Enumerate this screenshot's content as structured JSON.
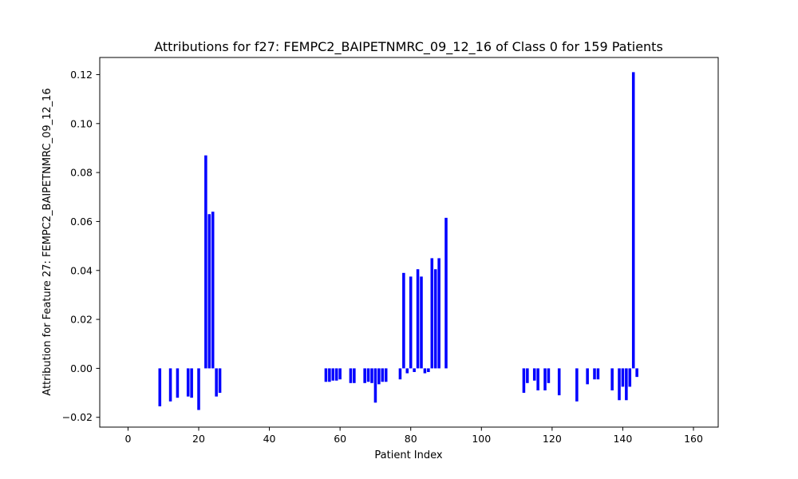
{
  "chart_data": {
    "type": "bar",
    "title": "Attributions for f27: FEMPC2_BAIPETNMRC_09_12_16 of Class 0 for 159 Patients",
    "xlabel": "Patient Index",
    "ylabel": "Attribution for Feature 27: FEMPC2_BAIPETNMRC_09_12_16",
    "xlim": [
      -8,
      167
    ],
    "ylim": [
      -0.024,
      0.127
    ],
    "xticks": [
      0,
      20,
      40,
      60,
      80,
      100,
      120,
      140,
      160
    ],
    "xtick_labels": [
      "0",
      "20",
      "40",
      "60",
      "80",
      "100",
      "120",
      "140",
      "160"
    ],
    "yticks": [
      -0.02,
      0.0,
      0.02,
      0.04,
      0.06,
      0.08,
      0.1,
      0.12
    ],
    "ytick_labels": [
      "−0.02",
      "0.00",
      "0.02",
      "0.04",
      "0.06",
      "0.08",
      "0.10",
      "0.12"
    ],
    "bar_width": 0.8,
    "color": "#0000ff",
    "grid": false,
    "legend": "none",
    "x": [
      9,
      12,
      14,
      17,
      18,
      20,
      22,
      23,
      24,
      25,
      26,
      56,
      57,
      58,
      59,
      60,
      63,
      64,
      67,
      68,
      69,
      70,
      71,
      72,
      73,
      77,
      78,
      79,
      80,
      81,
      82,
      83,
      84,
      85,
      86,
      87,
      88,
      90,
      112,
      113,
      115,
      116,
      118,
      119,
      122,
      127,
      130,
      132,
      133,
      137,
      139,
      140,
      141,
      142,
      143,
      144
    ],
    "values": [
      -0.0155,
      -0.0135,
      -0.012,
      -0.0115,
      -0.012,
      -0.017,
      0.087,
      0.063,
      0.064,
      -0.0115,
      -0.01,
      -0.0055,
      -0.0055,
      -0.005,
      -0.005,
      -0.0045,
      -0.006,
      -0.006,
      -0.006,
      -0.0055,
      -0.006,
      -0.014,
      -0.0065,
      -0.0055,
      -0.0055,
      -0.0045,
      0.039,
      -0.002,
      0.0375,
      -0.0015,
      0.0405,
      0.0375,
      -0.002,
      -0.0015,
      0.045,
      0.0405,
      0.045,
      0.0615,
      -0.01,
      -0.006,
      -0.005,
      -0.009,
      -0.009,
      -0.006,
      -0.011,
      -0.0135,
      -0.0065,
      -0.0045,
      -0.0045,
      -0.009,
      -0.013,
      -0.0075,
      -0.013,
      -0.0075,
      0.121,
      -0.0035
    ]
  }
}
